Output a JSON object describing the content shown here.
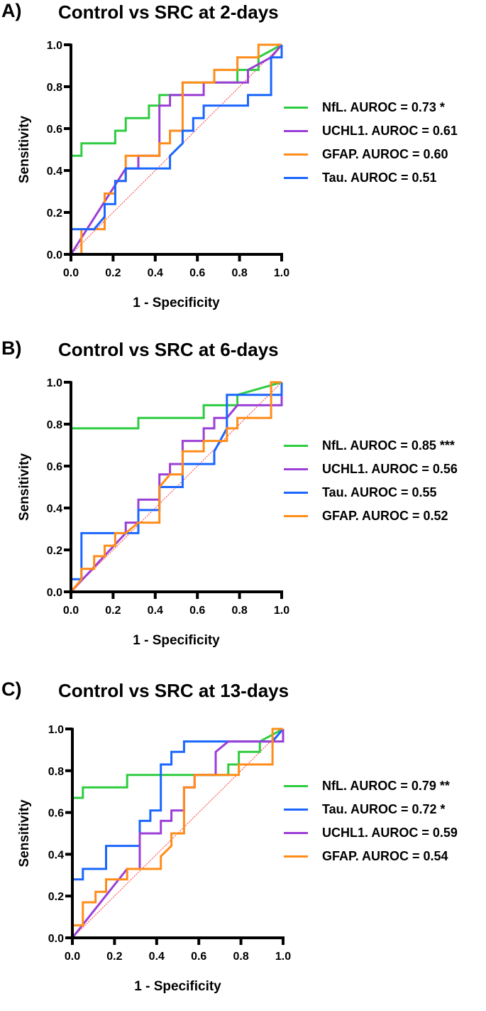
{
  "chart_data": [
    {
      "type": "line",
      "panel_label": "A)",
      "title": "Control vs SRC at 2-days",
      "xlabel": "1 - Specificity",
      "ylabel": "Sensitivity",
      "xlim": [
        0,
        1
      ],
      "ylim": [
        0,
        1
      ],
      "xticks": [
        "0.0",
        "0.2",
        "0.4",
        "0.6",
        "0.8",
        "1.0"
      ],
      "yticks": [
        "0.0",
        "0.2",
        "0.4",
        "0.6",
        "0.8",
        "1.0"
      ],
      "grid": false,
      "legend_position": "right",
      "reference_line": {
        "name": "chance",
        "color": "#ff3333",
        "x": [
          0,
          1
        ],
        "y": [
          0,
          1
        ]
      },
      "series": [
        {
          "name": "NfL",
          "label": "NfL. AUROC = 0.73 *",
          "color": "#2ecc40",
          "x": [
            0,
            0,
            0.05,
            0.05,
            0.21,
            0.21,
            0.26,
            0.26,
            0.37,
            0.37,
            0.42,
            0.42,
            0.53,
            0.53,
            0.79,
            0.79,
            0.89,
            0.89,
            1.0
          ],
          "y": [
            0,
            0.47,
            0.47,
            0.53,
            0.53,
            0.59,
            0.59,
            0.65,
            0.65,
            0.71,
            0.71,
            0.76,
            0.76,
            0.82,
            0.82,
            0.88,
            0.88,
            0.94,
            1.0
          ]
        },
        {
          "name": "UCHL1",
          "label": "UCHL1. AUROC = 0.61",
          "color": "#9b3fd6",
          "x": [
            0,
            0.26,
            0.32,
            0.32,
            0.42,
            0.42,
            0.47,
            0.47,
            0.63,
            0.63,
            0.84,
            0.84,
            0.95,
            1.0
          ],
          "y": [
            0,
            0.41,
            0.41,
            0.47,
            0.47,
            0.71,
            0.71,
            0.76,
            0.76,
            0.82,
            0.82,
            0.88,
            0.94,
            1.0
          ]
        },
        {
          "name": "GFAP",
          "label": "GFAP. AUROC = 0.60",
          "color": "#ff8c1a",
          "x": [
            0,
            0.05,
            0.05,
            0.16,
            0.16,
            0.21,
            0.21,
            0.26,
            0.26,
            0.42,
            0.42,
            0.47,
            0.47,
            0.53,
            0.53,
            0.68,
            0.68,
            0.79,
            0.79,
            0.89,
            0.89,
            1.0,
            1.0
          ],
          "y": [
            0,
            0,
            0.12,
            0.12,
            0.29,
            0.29,
            0.35,
            0.35,
            0.47,
            0.47,
            0.53,
            0.53,
            0.59,
            0.59,
            0.82,
            0.82,
            0.88,
            0.88,
            0.94,
            0.94,
            1.0,
            1.0,
            1.0
          ]
        },
        {
          "name": "Tau",
          "label": "Tau. AUROC = 0.51",
          "color": "#1a66ff",
          "x": [
            0,
            0,
            0.11,
            0.16,
            0.16,
            0.21,
            0.21,
            0.26,
            0.26,
            0.47,
            0.47,
            0.53,
            0.53,
            0.58,
            0.58,
            0.63,
            0.63,
            0.84,
            0.84,
            0.95,
            0.95,
            1.0,
            1.0
          ],
          "y": [
            0,
            0.12,
            0.12,
            0.18,
            0.24,
            0.24,
            0.35,
            0.35,
            0.41,
            0.41,
            0.47,
            0.53,
            0.59,
            0.59,
            0.65,
            0.65,
            0.71,
            0.71,
            0.76,
            0.76,
            0.94,
            0.94,
            1.0
          ]
        }
      ]
    },
    {
      "type": "line",
      "panel_label": "B)",
      "title": "Control vs SRC at 6-days",
      "xlabel": "1 - Specificity",
      "ylabel": "Sensitivity",
      "xlim": [
        0,
        1
      ],
      "ylim": [
        0,
        1
      ],
      "xticks": [
        "0.0",
        "0.2",
        "0.4",
        "0.6",
        "0.8",
        "1.0"
      ],
      "yticks": [
        "0.0",
        "0.2",
        "0.4",
        "0.6",
        "0.8",
        "1.0"
      ],
      "grid": false,
      "legend_position": "right",
      "reference_line": {
        "name": "chance",
        "color": "#ff3333",
        "x": [
          0,
          1
        ],
        "y": [
          0,
          1
        ]
      },
      "series": [
        {
          "name": "NfL",
          "label": "NfL. AUROC = 0.85 ***",
          "color": "#2ecc40",
          "x": [
            0,
            0,
            0.32,
            0.32,
            0.63,
            0.63,
            0.79,
            0.79,
            1.0
          ],
          "y": [
            0,
            0.78,
            0.78,
            0.83,
            0.83,
            0.89,
            0.89,
            0.94,
            1.0
          ]
        },
        {
          "name": "UCHL1",
          "label": "UCHL1. AUROC = 0.56",
          "color": "#9b3fd6",
          "x": [
            0,
            0.26,
            0.26,
            0.32,
            0.32,
            0.42,
            0.42,
            0.47,
            0.47,
            0.53,
            0.53,
            0.63,
            0.63,
            0.68,
            0.68,
            0.74,
            0.79,
            1.0,
            1.0
          ],
          "y": [
            0,
            0.28,
            0.33,
            0.33,
            0.44,
            0.44,
            0.56,
            0.56,
            0.61,
            0.61,
            0.72,
            0.72,
            0.78,
            0.78,
            0.83,
            0.83,
            0.89,
            0.89,
            1.0
          ]
        },
        {
          "name": "Tau",
          "label": "Tau. AUROC = 0.55",
          "color": "#1a66ff",
          "x": [
            0,
            0,
            0.05,
            0.05,
            0.32,
            0.32,
            0.42,
            0.42,
            0.53,
            0.53,
            0.68,
            0.68,
            0.74,
            0.74,
            1.0,
            1.0
          ],
          "y": [
            0,
            0.06,
            0.06,
            0.28,
            0.28,
            0.39,
            0.39,
            0.5,
            0.5,
            0.61,
            0.61,
            0.67,
            0.78,
            0.94,
            0.94,
            1.0
          ]
        },
        {
          "name": "GFAP",
          "label": "GFAP. AUROC = 0.52",
          "color": "#ff8c1a",
          "x": [
            0,
            0.05,
            0.05,
            0.11,
            0.11,
            0.16,
            0.16,
            0.21,
            0.21,
            0.26,
            0.32,
            0.42,
            0.42,
            0.47,
            0.53,
            0.53,
            0.63,
            0.63,
            0.74,
            0.74,
            0.79,
            0.79,
            0.95,
            0.95,
            1.0
          ],
          "y": [
            0,
            0.06,
            0.11,
            0.11,
            0.17,
            0.17,
            0.22,
            0.22,
            0.28,
            0.28,
            0.33,
            0.33,
            0.5,
            0.56,
            0.56,
            0.67,
            0.67,
            0.72,
            0.72,
            0.78,
            0.78,
            0.83,
            0.83,
            1.0,
            1.0
          ]
        }
      ]
    },
    {
      "type": "line",
      "panel_label": "C)",
      "title": "Control vs SRC at 13-days",
      "xlabel": "1 - Specificity",
      "ylabel": "Sensitivity",
      "xlim": [
        0,
        1
      ],
      "ylim": [
        0,
        1
      ],
      "xticks": [
        "0.0",
        "0.2",
        "0.4",
        "0.6",
        "0.8",
        "1.0"
      ],
      "yticks": [
        "0.0",
        "0.2",
        "0.4",
        "0.6",
        "0.8",
        "1.0"
      ],
      "grid": false,
      "legend_position": "right",
      "reference_line": {
        "name": "chance",
        "color": "#ff3333",
        "x": [
          0,
          1
        ],
        "y": [
          0,
          1
        ]
      },
      "series": [
        {
          "name": "NfL",
          "label": "NfL. AUROC = 0.79 **",
          "color": "#2ecc40",
          "x": [
            0,
            0,
            0.05,
            0.05,
            0.26,
            0.26,
            0.74,
            0.74,
            0.79,
            0.79,
            0.89,
            0.89,
            1.0
          ],
          "y": [
            0,
            0.67,
            0.67,
            0.72,
            0.72,
            0.78,
            0.78,
            0.83,
            0.83,
            0.89,
            0.89,
            0.94,
            1.0
          ]
        },
        {
          "name": "Tau",
          "label": "Tau. AUROC = 0.72 *",
          "color": "#1a66ff",
          "x": [
            0,
            0,
            0.05,
            0.05,
            0.16,
            0.16,
            0.32,
            0.32,
            0.37,
            0.37,
            0.42,
            0.42,
            0.47,
            0.47,
            0.53,
            0.53,
            0.95,
            1.0
          ],
          "y": [
            0,
            0.28,
            0.28,
            0.33,
            0.33,
            0.44,
            0.44,
            0.56,
            0.56,
            0.61,
            0.61,
            0.83,
            0.83,
            0.89,
            0.89,
            0.94,
            0.94,
            1.0
          ]
        },
        {
          "name": "UCHL1",
          "label": "UCHL1. AUROC = 0.59",
          "color": "#9b3fd6",
          "x": [
            0,
            0.26,
            0.32,
            0.32,
            0.42,
            0.42,
            0.47,
            0.47,
            0.53,
            0.53,
            0.58,
            0.58,
            0.68,
            0.68,
            0.74,
            0.95,
            1.0,
            1.0
          ],
          "y": [
            0,
            0.33,
            0.33,
            0.5,
            0.5,
            0.56,
            0.56,
            0.61,
            0.61,
            0.72,
            0.72,
            0.78,
            0.78,
            0.89,
            0.94,
            0.94,
            0.94,
            1.0
          ]
        },
        {
          "name": "GFAP",
          "label": "GFAP. AUROC = 0.54",
          "color": "#ff8c1a",
          "x": [
            0,
            0,
            0.05,
            0.05,
            0.11,
            0.11,
            0.16,
            0.16,
            0.26,
            0.26,
            0.42,
            0.42,
            0.47,
            0.47,
            0.53,
            0.53,
            0.58,
            0.58,
            0.79,
            0.79,
            0.95,
            0.95,
            1.0,
            1.0
          ],
          "y": [
            0,
            0.06,
            0.06,
            0.17,
            0.17,
            0.22,
            0.22,
            0.28,
            0.28,
            0.33,
            0.33,
            0.39,
            0.44,
            0.5,
            0.5,
            0.72,
            0.72,
            0.78,
            0.78,
            0.83,
            0.83,
            1.0,
            1.0,
            1.0
          ]
        }
      ]
    }
  ]
}
